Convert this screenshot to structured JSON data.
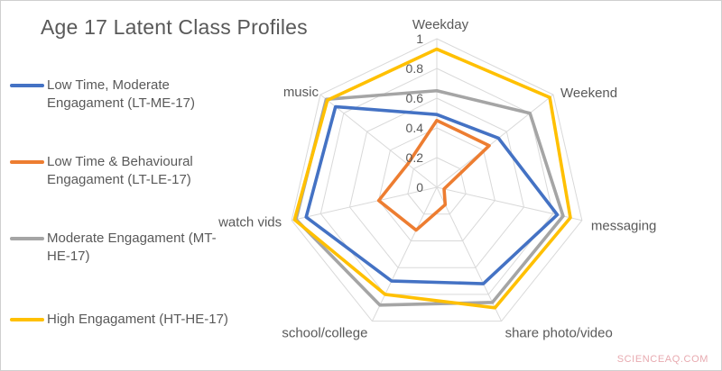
{
  "title": "Age 17 Latent Class Profiles",
  "watermark": "SCIENCEAQ.COM",
  "legend": [
    {
      "label": "Low Time, Moderate Engagament (LT-ME-17)",
      "color": "#4472C4"
    },
    {
      "label": "Low Time & Behavioural Engagament (LT-LE-17)",
      "color": "#ED7D31"
    },
    {
      "label": "Moderate Engagament (MT-HE-17)",
      "color": "#A5A5A5"
    },
    {
      "label": "High Engagament (HT-HE-17)",
      "color": "#FFC000"
    }
  ],
  "chart_data": {
    "type": "radar",
    "categories": [
      "Weekday",
      "Weekend",
      "messaging",
      "share photo/video",
      "school/college",
      "watch vids",
      "music"
    ],
    "series": [
      {
        "name": "Low Time, Moderate Engagament (LT-ME-17)",
        "color": "#4472C4",
        "values": [
          0.49,
          0.53,
          0.83,
          0.72,
          0.7,
          0.9,
          0.87
        ]
      },
      {
        "name": "Low Time & Behavioural Engagament (LT-LE-17)",
        "color": "#ED7D31",
        "values": [
          0.45,
          0.45,
          0.05,
          0.13,
          0.32,
          0.4,
          0.25
        ]
      },
      {
        "name": "Moderate Engagament (MT-HE-17)",
        "color": "#A5A5A5",
        "values": [
          0.65,
          0.8,
          0.87,
          0.86,
          0.88,
          0.97,
          0.95
        ]
      },
      {
        "name": "High Engagament (HT-HE-17)",
        "color": "#FFC000",
        "values": [
          0.93,
          0.97,
          0.92,
          0.9,
          0.8,
          0.98,
          0.94
        ]
      }
    ],
    "tick_labels": [
      "0",
      "0.2",
      "0.4",
      "0.6",
      "0.8",
      "1"
    ],
    "ticks": [
      0,
      0.2,
      0.4,
      0.6,
      0.8,
      1
    ],
    "rmin": 0,
    "rmax": 1,
    "grid": true,
    "gridline_color": "#D9D9D9",
    "label_color": "#595959",
    "legend_position": "left"
  }
}
